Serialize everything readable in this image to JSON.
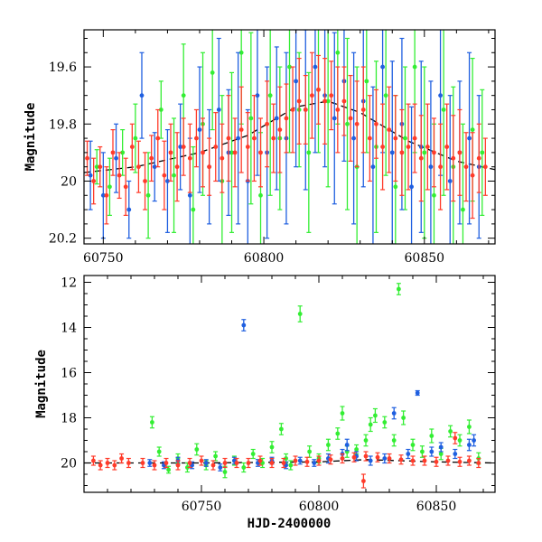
{
  "chart_data": [
    {
      "panel": "top",
      "type": "scatter",
      "ylabel": "Magnitude",
      "xlabel": "",
      "xlim": [
        60744,
        60872
      ],
      "ylim": [
        20.22,
        19.47
      ],
      "y_inverted": true,
      "xticks": [
        60750,
        60800,
        60850
      ],
      "xtick_labels": [
        "60750",
        "60800",
        "60850"
      ],
      "yticks": [
        19.6,
        19.8,
        20.0,
        20.2
      ],
      "ytick_labels": [
        "19.6",
        "19.8",
        "20",
        "20.2"
      ],
      "grid": false,
      "trend_curve": {
        "x": [
          60744,
          60760,
          60780,
          60795,
          60810,
          60820,
          60830,
          60845,
          60860,
          60872
        ],
        "y": [
          19.97,
          19.95,
          19.9,
          19.84,
          19.74,
          19.72,
          19.76,
          19.86,
          19.93,
          19.96
        ]
      },
      "series": [
        {
          "color": "#33ee33",
          "x": [
            60748,
            60752,
            60756,
            60760,
            60764,
            60768,
            60772,
            60775,
            60778,
            60781,
            60784,
            60787,
            60790,
            60793,
            60796,
            60799,
            60802,
            60805,
            60808,
            60811,
            60814,
            60817,
            60820,
            60823,
            60826,
            60829,
            60832,
            60835,
            60838,
            60841,
            60844,
            60847,
            60850,
            60853,
            60856,
            60859,
            60862,
            60865,
            60868
          ],
          "y": [
            19.95,
            20.02,
            19.9,
            19.85,
            20.05,
            19.75,
            19.98,
            19.7,
            20.1,
            19.8,
            19.62,
            20.0,
            19.9,
            19.55,
            19.78,
            20.05,
            19.7,
            19.85,
            19.6,
            19.75,
            19.9,
            19.68,
            19.72,
            19.55,
            19.8,
            19.95,
            19.65,
            19.88,
            19.7,
            20.02,
            19.85,
            19.6,
            19.9,
            20.05,
            19.75,
            19.95,
            20.1,
            19.82,
            19.9
          ],
          "err": [
            0.06,
            0.1,
            0.08,
            0.12,
            0.15,
            0.1,
            0.2,
            0.18,
            0.22,
            0.25,
            0.2,
            0.3,
            0.28,
            0.25,
            0.3,
            0.22,
            0.35,
            0.25,
            0.3,
            0.2,
            0.28,
            0.22,
            0.3,
            0.25,
            0.3,
            0.35,
            0.25,
            0.3,
            0.28,
            0.32,
            0.25,
            0.3,
            0.3,
            0.25,
            0.3,
            0.28,
            0.3,
            0.25,
            0.22
          ]
        },
        {
          "color": "#1f5fe0",
          "x": [
            60746,
            60750,
            60754,
            60758,
            60762,
            60766,
            60770,
            60774,
            60777,
            60780,
            60783,
            60786,
            60789,
            60792,
            60795,
            60798,
            60801,
            60804,
            60807,
            60810,
            60813,
            60816,
            60819,
            60822,
            60825,
            60828,
            60831,
            60834,
            60837,
            60840,
            60843,
            60846,
            60849,
            60852,
            60855,
            60858,
            60861,
            60864,
            60867
          ],
          "y": [
            19.98,
            20.05,
            19.92,
            20.1,
            19.7,
            19.95,
            20.0,
            19.88,
            20.05,
            19.82,
            19.95,
            19.75,
            19.9,
            19.85,
            20.0,
            19.7,
            19.9,
            19.78,
            19.85,
            19.65,
            19.75,
            19.6,
            19.7,
            19.78,
            19.65,
            19.85,
            19.72,
            19.95,
            19.6,
            19.9,
            19.8,
            20.02,
            19.88,
            19.95,
            19.7,
            20.0,
            19.9,
            19.85,
            19.95
          ],
          "err": [
            0.12,
            0.15,
            0.12,
            0.1,
            0.15,
            0.12,
            0.18,
            0.15,
            0.2,
            0.22,
            0.2,
            0.25,
            0.22,
            0.3,
            0.25,
            0.28,
            0.3,
            0.25,
            0.3,
            0.3,
            0.28,
            0.3,
            0.25,
            0.3,
            0.28,
            0.3,
            0.3,
            0.28,
            0.3,
            0.32,
            0.3,
            0.28,
            0.3,
            0.3,
            0.28,
            0.3,
            0.25,
            0.3,
            0.25
          ]
        },
        {
          "color": "#ff3b2a",
          "x": [
            60745,
            60747,
            60749,
            60751,
            60753,
            60755,
            60757,
            60759,
            60761,
            60763,
            60765,
            60767,
            60769,
            60771,
            60773,
            60775,
            60777,
            60779,
            60781,
            60783,
            60785,
            60787,
            60789,
            60791,
            60793,
            60795,
            60797,
            60799,
            60801,
            60803,
            60805,
            60807,
            60809,
            60811,
            60813,
            60815,
            60817,
            60819,
            60821,
            60823,
            60825,
            60827,
            60829,
            60831,
            60833,
            60835,
            60837,
            60839,
            60841,
            60843,
            60845,
            60847,
            60849,
            60851,
            60853,
            60855,
            60857,
            60859,
            60861,
            60863,
            60865,
            60867,
            60869
          ],
          "y": [
            19.92,
            20.0,
            19.95,
            20.05,
            19.9,
            19.98,
            20.02,
            19.88,
            19.95,
            20.0,
            19.92,
            19.85,
            19.98,
            19.9,
            19.95,
            19.88,
            19.92,
            19.85,
            19.9,
            19.95,
            19.88,
            19.92,
            19.85,
            19.9,
            19.82,
            19.88,
            19.85,
            19.9,
            19.8,
            19.85,
            19.82,
            19.78,
            19.75,
            19.72,
            19.75,
            19.7,
            19.68,
            19.72,
            19.7,
            19.75,
            19.72,
            19.78,
            19.8,
            19.75,
            19.85,
            19.8,
            19.88,
            19.82,
            19.85,
            19.9,
            19.88,
            19.85,
            19.92,
            19.88,
            19.9,
            19.95,
            19.88,
            19.92,
            19.9,
            19.95,
            19.98,
            19.92,
            19.95
          ],
          "err": [
            0.06,
            0.08,
            0.07,
            0.1,
            0.08,
            0.08,
            0.1,
            0.08,
            0.09,
            0.1,
            0.08,
            0.1,
            0.12,
            0.1,
            0.12,
            0.1,
            0.12,
            0.1,
            0.12,
            0.1,
            0.12,
            0.12,
            0.15,
            0.12,
            0.15,
            0.12,
            0.15,
            0.12,
            0.15,
            0.12,
            0.15,
            0.12,
            0.15,
            0.15,
            0.12,
            0.15,
            0.12,
            0.15,
            0.12,
            0.15,
            0.12,
            0.15,
            0.15,
            0.15,
            0.15,
            0.12,
            0.15,
            0.15,
            0.15,
            0.15,
            0.15,
            0.12,
            0.15,
            0.15,
            0.12,
            0.15,
            0.15,
            0.15,
            0.15,
            0.12,
            0.15,
            0.12,
            0.1
          ]
        }
      ]
    },
    {
      "panel": "bottom",
      "type": "scatter",
      "ylabel": "Magnitude",
      "xlabel": "HJD-2400000",
      "xlim": [
        60700,
        60875
      ],
      "ylim": [
        21.3,
        11.7
      ],
      "y_inverted": true,
      "xticks": [
        60750,
        60800,
        60850
      ],
      "xtick_labels": [
        "60750",
        "60800",
        "60850"
      ],
      "yticks": [
        12,
        14,
        16,
        18,
        20
      ],
      "ytick_labels": [
        "12",
        "14",
        "16",
        "18",
        "20"
      ],
      "grid": false,
      "trend_curve": {
        "x": [
          60700,
          60750,
          60800,
          60820,
          60850,
          60875
        ],
        "y": [
          20.0,
          20.0,
          19.95,
          19.85,
          19.95,
          20.0
        ]
      },
      "series": [
        {
          "color": "#33ee33",
          "x": [
            60729,
            60732,
            60736,
            60740,
            60744,
            60748,
            60752,
            60756,
            60760,
            60764,
            60768,
            60772,
            60776,
            60780,
            60784,
            60786,
            60788,
            60792,
            60796,
            60800,
            60804,
            60808,
            60810,
            60812,
            60816,
            60820,
            60822,
            60824,
            60828,
            60832,
            60834,
            60836,
            60840,
            60844,
            60848,
            60852,
            60856,
            60860,
            60864,
            60868
          ],
          "y": [
            18.2,
            19.5,
            20.3,
            19.8,
            20.2,
            19.4,
            20.1,
            19.7,
            20.4,
            19.9,
            20.2,
            19.6,
            20.0,
            19.3,
            18.5,
            19.8,
            20.1,
            13.4,
            19.5,
            19.8,
            19.2,
            18.7,
            17.8,
            19.5,
            19.4,
            19.0,
            18.3,
            17.9,
            18.2,
            19.0,
            12.3,
            18.0,
            19.2,
            19.5,
            18.8,
            19.6,
            18.6,
            19.0,
            18.4,
            19.8
          ],
          "err": [
            0.25,
            0.2,
            0.15,
            0.2,
            0.2,
            0.25,
            0.2,
            0.2,
            0.25,
            0.2,
            0.2,
            0.2,
            0.2,
            0.25,
            0.25,
            0.2,
            0.2,
            0.35,
            0.25,
            0.2,
            0.25,
            0.25,
            0.3,
            0.25,
            0.2,
            0.25,
            0.3,
            0.3,
            0.25,
            0.25,
            0.25,
            0.3,
            0.25,
            0.25,
            0.3,
            0.25,
            0.25,
            0.25,
            0.3,
            0.25
          ]
        },
        {
          "color": "#1f5fe0",
          "x": [
            60728,
            60734,
            60740,
            60746,
            60752,
            60758,
            60764,
            60768,
            60774,
            60780,
            60786,
            60792,
            60798,
            60804,
            60810,
            60812,
            60816,
            60822,
            60828,
            60832,
            60838,
            60842,
            60848,
            60852,
            60858,
            60864,
            60866
          ],
          "y": [
            20.0,
            20.1,
            19.9,
            20.1,
            20.0,
            20.2,
            19.9,
            13.9,
            20.0,
            19.9,
            20.1,
            19.9,
            20.0,
            19.8,
            19.6,
            19.2,
            19.7,
            19.9,
            19.8,
            17.8,
            19.6,
            16.9,
            19.5,
            19.3,
            19.6,
            19.2,
            19.0
          ],
          "err": [
            0.15,
            0.15,
            0.15,
            0.15,
            0.15,
            0.15,
            0.15,
            0.25,
            0.15,
            0.15,
            0.15,
            0.15,
            0.15,
            0.2,
            0.2,
            0.25,
            0.2,
            0.2,
            0.2,
            0.25,
            0.2,
            0.1,
            0.2,
            0.2,
            0.2,
            0.25,
            0.25
          ]
        },
        {
          "color": "#ff3b2a",
          "x": [
            60704,
            60707,
            60710,
            60713,
            60716,
            60719,
            60725,
            60730,
            60735,
            60740,
            60745,
            60750,
            60755,
            60760,
            60765,
            60770,
            60775,
            60780,
            60785,
            60790,
            60795,
            60800,
            60805,
            60810,
            60815,
            60819,
            60820,
            60825,
            60830,
            60835,
            60840,
            60845,
            60850,
            60855,
            60858,
            60860,
            60864,
            60868
          ],
          "y": [
            19.9,
            20.1,
            20.0,
            20.1,
            19.8,
            20.0,
            20.0,
            20.1,
            20.0,
            20.1,
            20.0,
            19.9,
            20.1,
            20.0,
            20.0,
            20.0,
            19.9,
            20.0,
            20.0,
            19.9,
            19.95,
            19.9,
            19.85,
            19.8,
            19.75,
            20.8,
            19.7,
            19.75,
            19.8,
            19.85,
            19.9,
            19.9,
            19.95,
            19.9,
            18.9,
            19.95,
            19.9,
            20.0
          ],
          "err": [
            0.2,
            0.2,
            0.2,
            0.2,
            0.2,
            0.2,
            0.2,
            0.2,
            0.2,
            0.2,
            0.2,
            0.2,
            0.2,
            0.2,
            0.2,
            0.2,
            0.2,
            0.2,
            0.2,
            0.2,
            0.2,
            0.2,
            0.2,
            0.2,
            0.2,
            0.3,
            0.2,
            0.2,
            0.2,
            0.2,
            0.2,
            0.2,
            0.2,
            0.2,
            0.25,
            0.2,
            0.2,
            0.2
          ]
        }
      ]
    }
  ]
}
